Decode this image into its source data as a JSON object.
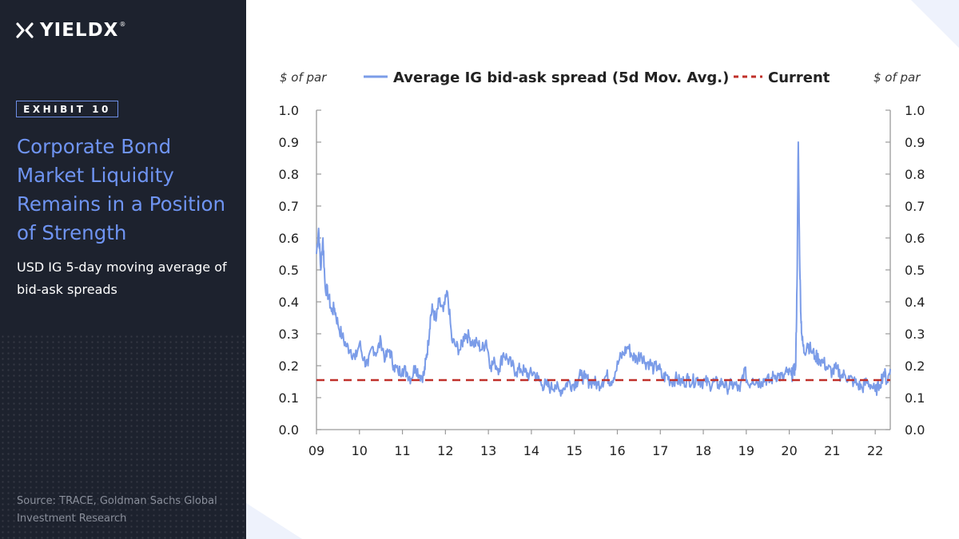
{
  "brand": {
    "name": "YIELDX",
    "tm": "®",
    "accent": "#6f94f2",
    "sidebar_bg": "#1d222e"
  },
  "exhibit_label": "EXHIBIT 10",
  "headline": "Corporate Bond Market Liquidity Remains in a Position of Strength",
  "subtitle": "USD IG 5-day moving average of bid-ask spreads",
  "source": "Source: TRACE, Goldman Sachs Global Investment Research",
  "chart_data": {
    "type": "line",
    "title": "",
    "y_unit_left": "$ of par",
    "y_unit_right": "$ of par",
    "ylim": [
      0,
      1.0
    ],
    "yticks": [
      "0.0",
      "0.1",
      "0.2",
      "0.3",
      "0.4",
      "0.5",
      "0.6",
      "0.7",
      "0.8",
      "0.9",
      "1.0"
    ],
    "xlim": [
      2009,
      2022.35
    ],
    "xticks": [
      "09",
      "10",
      "11",
      "12",
      "13",
      "14",
      "15",
      "16",
      "17",
      "18",
      "19",
      "20",
      "21",
      "22"
    ],
    "grid": false,
    "legend_position": "top",
    "series": [
      {
        "name": "Average IG bid-ask spread (5d Mov. Avg.)",
        "style": "line",
        "color": "#7b9ce8",
        "x": [
          2009.0,
          2009.05,
          2009.1,
          2009.15,
          2009.2,
          2009.28,
          2009.35,
          2009.42,
          2009.5,
          2009.6,
          2009.7,
          2009.8,
          2009.9,
          2010.0,
          2010.1,
          2010.2,
          2010.3,
          2010.4,
          2010.5,
          2010.6,
          2010.7,
          2010.8,
          2010.9,
          2011.0,
          2011.1,
          2011.2,
          2011.3,
          2011.4,
          2011.5,
          2011.55,
          2011.6,
          2011.65,
          2011.7,
          2011.78,
          2011.85,
          2011.95,
          2012.05,
          2012.15,
          2012.25,
          2012.35,
          2012.45,
          2012.55,
          2012.65,
          2012.75,
          2012.85,
          2012.95,
          2013.05,
          2013.15,
          2013.25,
          2013.35,
          2013.45,
          2013.55,
          2013.65,
          2013.75,
          2013.85,
          2013.95,
          2014.05,
          2014.15,
          2014.25,
          2014.35,
          2014.45,
          2014.55,
          2014.65,
          2014.75,
          2014.85,
          2014.95,
          2015.05,
          2015.15,
          2015.25,
          2015.35,
          2015.45,
          2015.55,
          2015.65,
          2015.75,
          2015.85,
          2015.95,
          2016.05,
          2016.15,
          2016.25,
          2016.35,
          2016.45,
          2016.55,
          2016.65,
          2016.75,
          2016.85,
          2016.95,
          2017.05,
          2017.15,
          2017.25,
          2017.35,
          2017.45,
          2017.55,
          2017.65,
          2017.75,
          2017.85,
          2017.95,
          2018.05,
          2018.15,
          2018.25,
          2018.35,
          2018.45,
          2018.55,
          2018.65,
          2018.75,
          2018.85,
          2018.95,
          2019.05,
          2019.15,
          2019.25,
          2019.35,
          2019.45,
          2019.55,
          2019.65,
          2019.75,
          2019.85,
          2019.95,
          2020.05,
          2020.1,
          2020.15,
          2020.18,
          2020.21,
          2020.24,
          2020.27,
          2020.3,
          2020.35,
          2020.42,
          2020.5,
          2020.6,
          2020.7,
          2020.8,
          2020.9,
          2021.0,
          2021.1,
          2021.2,
          2021.3,
          2021.4,
          2021.5,
          2021.6,
          2021.7,
          2021.8,
          2021.9,
          2022.0,
          2022.1,
          2022.2,
          2022.28,
          2022.35
        ],
        "y": [
          0.55,
          0.63,
          0.5,
          0.6,
          0.45,
          0.42,
          0.37,
          0.38,
          0.33,
          0.29,
          0.26,
          0.25,
          0.22,
          0.27,
          0.22,
          0.2,
          0.26,
          0.24,
          0.28,
          0.22,
          0.25,
          0.2,
          0.18,
          0.19,
          0.18,
          0.16,
          0.2,
          0.17,
          0.17,
          0.22,
          0.27,
          0.35,
          0.38,
          0.34,
          0.4,
          0.37,
          0.43,
          0.28,
          0.26,
          0.25,
          0.3,
          0.29,
          0.27,
          0.27,
          0.25,
          0.28,
          0.2,
          0.21,
          0.19,
          0.24,
          0.22,
          0.2,
          0.18,
          0.19,
          0.18,
          0.17,
          0.18,
          0.16,
          0.14,
          0.14,
          0.13,
          0.14,
          0.12,
          0.13,
          0.15,
          0.14,
          0.15,
          0.17,
          0.16,
          0.15,
          0.15,
          0.14,
          0.15,
          0.17,
          0.15,
          0.18,
          0.22,
          0.24,
          0.26,
          0.23,
          0.22,
          0.24,
          0.21,
          0.21,
          0.19,
          0.2,
          0.16,
          0.17,
          0.15,
          0.16,
          0.15,
          0.15,
          0.16,
          0.15,
          0.16,
          0.15,
          0.15,
          0.14,
          0.15,
          0.14,
          0.15,
          0.13,
          0.14,
          0.14,
          0.12,
          0.19,
          0.14,
          0.16,
          0.15,
          0.15,
          0.16,
          0.15,
          0.17,
          0.17,
          0.16,
          0.18,
          0.17,
          0.18,
          0.2,
          0.45,
          0.9,
          0.55,
          0.36,
          0.28,
          0.24,
          0.27,
          0.25,
          0.23,
          0.22,
          0.21,
          0.19,
          0.18,
          0.19,
          0.17,
          0.17,
          0.16,
          0.15,
          0.14,
          0.13,
          0.15,
          0.14,
          0.12,
          0.14,
          0.18,
          0.15,
          0.19
        ]
      },
      {
        "name": "Current",
        "style": "dashed",
        "color": "#c0302a",
        "x": [
          2009.0,
          2022.35
        ],
        "y": [
          0.155,
          0.155
        ]
      }
    ]
  }
}
